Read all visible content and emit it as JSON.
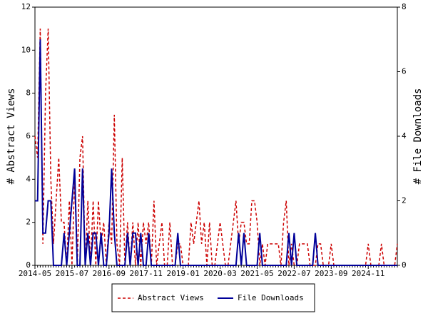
{
  "chart_data": {
    "type": "line",
    "y_label": "# Abstract Views",
    "y2_label": "# File Downloads",
    "categories": [
      "2014-05",
      null,
      null,
      null,
      null,
      null,
      null,
      null,
      null,
      null,
      null,
      null,
      null,
      null,
      "2015-07",
      null,
      null,
      null,
      null,
      null,
      null,
      null,
      null,
      null,
      null,
      null,
      null,
      null,
      "2016-09",
      null,
      null,
      null,
      null,
      null,
      null,
      null,
      null,
      null,
      null,
      null,
      null,
      null,
      "2017-11",
      null,
      null,
      null,
      null,
      null,
      null,
      null,
      null,
      null,
      null,
      null,
      null,
      null,
      "2019-01",
      null,
      null,
      null,
      null,
      null,
      null,
      null,
      null,
      null,
      null,
      null,
      null,
      null,
      "2020-03",
      null,
      null,
      null,
      null,
      null,
      null,
      null,
      null,
      null,
      null,
      null,
      null,
      null,
      "2021-05",
      null,
      null,
      null,
      null,
      null,
      null,
      null,
      null,
      null,
      null,
      null,
      null,
      null,
      "2022-07",
      null,
      null,
      null,
      null,
      null,
      null,
      null,
      null,
      null,
      null,
      null,
      null,
      null,
      "2023-09",
      null,
      null,
      null,
      null,
      null,
      null,
      null,
      null,
      null,
      null,
      null,
      null,
      null,
      "2024-11",
      null,
      null,
      null,
      null,
      null,
      null,
      null,
      null,
      null,
      null,
      null
    ],
    "series": [
      {
        "name": "Abstract Views",
        "color": "#cc0000",
        "style": "dashed",
        "axis": "y",
        "values": [
          6,
          5,
          11,
          1,
          8,
          11,
          4,
          1,
          3,
          5,
          2,
          2,
          0,
          3,
          0,
          4,
          0,
          5,
          6,
          0,
          3,
          0,
          3,
          0,
          3,
          1,
          2,
          0,
          2,
          1,
          7,
          1,
          0,
          5,
          0,
          2,
          0,
          2,
          0,
          2,
          0,
          2,
          1,
          2,
          0,
          3,
          0,
          1,
          2,
          0,
          0,
          2,
          0,
          0,
          1,
          1,
          0,
          0,
          0,
          2,
          1,
          2,
          3,
          1,
          2,
          0,
          2,
          0,
          0,
          1,
          2,
          1,
          0,
          0,
          1,
          2,
          3,
          1,
          2,
          2,
          1,
          1,
          3,
          3,
          2,
          0,
          1,
          0,
          1,
          1,
          1,
          1,
          1,
          0,
          2,
          3,
          0,
          1,
          0,
          0,
          1,
          1,
          1,
          1,
          0,
          0,
          0,
          1,
          1,
          0,
          0,
          0,
          1,
          0,
          0,
          0,
          0,
          0,
          0,
          0,
          0,
          0,
          0,
          0,
          0,
          0,
          1,
          0,
          0,
          0,
          0,
          1,
          0,
          0,
          0,
          0,
          0,
          1
        ]
      },
      {
        "name": "File Downloads",
        "color": "#000099",
        "style": "solid",
        "axis": "y2",
        "values": [
          2,
          2,
          7,
          1,
          1,
          2,
          2,
          0,
          0,
          0,
          0,
          1,
          0,
          1,
          2,
          3,
          0,
          0,
          3,
          0,
          1,
          0,
          1,
          1,
          0,
          1,
          0,
          0,
          1,
          3,
          1,
          0,
          0,
          0,
          0,
          1,
          0,
          1,
          1,
          0,
          1,
          0,
          0,
          1,
          0,
          0,
          0,
          0,
          0,
          0,
          0,
          0,
          0,
          0,
          1,
          0,
          0,
          0,
          0,
          0,
          0,
          0,
          0,
          0,
          0,
          0,
          0,
          0,
          0,
          0,
          0,
          0,
          0,
          0,
          0,
          0,
          0,
          1,
          0,
          1,
          0,
          0,
          0,
          0,
          0,
          1,
          0,
          0,
          0,
          0,
          0,
          0,
          0,
          0,
          0,
          0,
          1,
          0,
          1,
          0,
          0,
          0,
          0,
          0,
          0,
          0,
          1,
          0,
          0,
          0,
          0,
          0,
          0,
          0,
          0,
          0,
          0,
          0,
          0,
          0,
          0,
          0,
          0,
          0,
          0,
          0,
          0,
          0,
          0,
          0,
          0,
          0,
          0,
          0,
          0,
          0,
          0,
          0
        ]
      }
    ],
    "ylim": [
      0,
      12
    ],
    "yticks": [
      0,
      2,
      4,
      6,
      8,
      10,
      12
    ],
    "y2lim": [
      0,
      8
    ],
    "y2ticks": [
      0,
      2,
      4,
      6,
      8
    ],
    "legend": "bottom"
  }
}
